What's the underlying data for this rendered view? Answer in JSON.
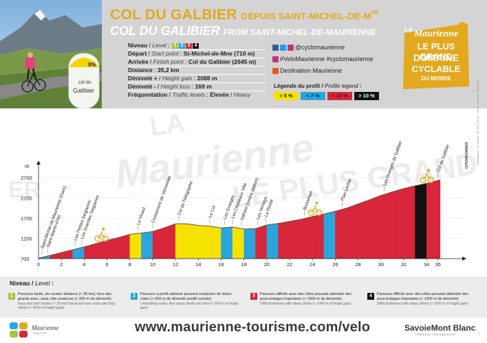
{
  "header": {
    "title_fr": "COL DU GALBIER",
    "subtitle_fr": "DEPUIS SAINT-MICHEL-DE-M",
    "subtitle_fr_sup": "NE",
    "title_en": "COL DU GALIBIER",
    "subtitle_en": "FROM SAINT-MICHEL-DE-MAURIENNE",
    "photo_sign_percent": "9%",
    "photo_sign_line1": "col du",
    "photo_sign_line2": "Galibier"
  },
  "info": {
    "niveau_label": "Niveau",
    "niveau_label_en": "Level",
    "niveau_levels": [
      "1",
      "2",
      "3",
      "4"
    ],
    "depart_label": "Départ",
    "depart_label_en": "Start point",
    "depart_value": "St-Michel-de-Mne (710 m)",
    "arrivee_label": "Arrivée",
    "arrivee_label_en": "Finish point",
    "arrivee_value": "Col du Galibier (2645 m)",
    "distance_label": "Distance",
    "distance_value": "35,2 km",
    "denivele_plus_label": "Dénivelé +",
    "denivele_plus_label_en": "Height gain",
    "denivele_plus_value": "2088 m",
    "denivele_moins_label": "Dénivelé -",
    "denivele_moins_label_en": "Height loss",
    "denivele_moins_value": "169 m",
    "frequentation_label": "Fréquentation",
    "frequentation_label_en": "Traffic levels",
    "frequentation_value": "Élevée",
    "frequentation_value_en": "Heavy"
  },
  "social": {
    "handle": "@cyclomaurienne",
    "hashtags": "#VeloMaurienne #cyclomaurienne",
    "destination": "Destination Maurienne"
  },
  "legend": {
    "title": "Légende du profil",
    "title_en": "Profile legend",
    "items": [
      {
        "label": "< 5 %",
        "color": "#f6e200",
        "text": "#222"
      },
      {
        "label": "< 7 %",
        "color": "#2aa6dd",
        "text": "#222"
      },
      {
        "label": "< 10 %",
        "color": "#d8263a",
        "text": "#222"
      },
      {
        "label": "> 10 %",
        "color": "#111111",
        "text": "#fff"
      }
    ]
  },
  "logo": {
    "la": "LA",
    "maurienne": "Maurienne",
    "line1": "LE PLUS GRAND",
    "line2": "DOMAINE",
    "line3": "CYCLABLE",
    "line4": "DU MONDE"
  },
  "chart_data": {
    "type": "area",
    "ylabel": "m",
    "yticks": [
      700,
      1200,
      1700,
      2200,
      2700
    ],
    "ylim": [
      700,
      2700
    ],
    "xticks": [
      0,
      2,
      4,
      6,
      8,
      10,
      12,
      14,
      16,
      18,
      20,
      22,
      24,
      26,
      28,
      30,
      32,
      34,
      35
    ],
    "xlim": [
      0,
      35.2
    ],
    "profile_x": [
      0,
      1,
      2,
      3,
      4,
      5,
      6,
      7,
      8,
      9,
      10,
      11,
      12,
      13,
      14,
      15,
      16,
      17,
      18,
      19,
      20,
      21,
      22,
      23,
      24,
      25,
      26,
      27,
      28,
      29,
      30,
      31,
      32,
      33,
      34,
      35.2
    ],
    "profile_y": [
      710,
      780,
      850,
      920,
      990,
      1070,
      1150,
      1220,
      1300,
      1330,
      1370,
      1460,
      1560,
      1560,
      1520,
      1500,
      1460,
      1480,
      1430,
      1440,
      1530,
      1570,
      1620,
      1670,
      1740,
      1800,
      1870,
      1950,
      2050,
      2150,
      2260,
      2350,
      2430,
      2500,
      2560,
      2645
    ],
    "segment_colors": [
      "#2aa6dd",
      "#d8263a",
      "#d8263a",
      "#2aa6dd",
      "#d8263a",
      "#d8263a",
      "#d8263a",
      "#d8263a",
      "#f6e200",
      "#2aa6dd",
      "#d8263a",
      "#d8263a",
      "#f6e200",
      "#f6e200",
      "#f6e200",
      "#f6e200",
      "#2aa6dd",
      "#f6e200",
      "#2aa6dd",
      "#d8263a",
      "#2aa6dd",
      "#d8263a",
      "#d8263a",
      "#d8263a",
      "#d8263a",
      "#2aa6dd",
      "#d8263a",
      "#d8263a",
      "#d8263a",
      "#d8263a",
      "#d8263a",
      "#d8263a",
      "#d8263a",
      "#111111",
      "#d8263a"
    ],
    "annotations": [
      {
        "label": "Saint-Michel-de-Maurienne (Gare)",
        "x": 0.3
      },
      {
        "label": "Saint-Martin-d'Arc",
        "x": 0.8
      },
      {
        "label": "Les Petites Seigneres",
        "x": 3.2
      },
      {
        "label": "Les Grandes Seigneres",
        "x": 3.8
      },
      {
        "label": "La Visard",
        "x": 8.7
      },
      {
        "label": "Croisement de Valmeinier",
        "x": 10.0
      },
      {
        "label": "Col du Télégraphe",
        "x": 12.3
      },
      {
        "label": "Le Col",
        "x": 15.0
      },
      {
        "label": "Les Granges",
        "x": 16.3
      },
      {
        "label": "Les Choseaux Ville",
        "x": 17.0
      },
      {
        "label": "Valloire (centre station)",
        "x": 17.8
      },
      {
        "label": "Les Verneys",
        "x": 19.2
      },
      {
        "label": "La Rivine",
        "x": 19.9
      },
      {
        "label": "Bonnenuit",
        "x": 23.3
      },
      {
        "label": "Plan Lachat",
        "x": 26.6
      },
      {
        "label": "Les Granges du Galibier",
        "x": 30.3
      },
      {
        "label": "Col du Galibier",
        "x": 35.0
      }
    ],
    "cyclists_x": [
      5.5,
      24.2,
      34.0
    ]
  },
  "levels": {
    "title": "Niveau",
    "title_en": "Level",
    "items": [
      {
        "num": "1",
        "color": "#a8c43c",
        "fr": "Parcours facile, de courtes distance (< 30 km), hors des grands axes, sans côte soutenue (< 300 m de dénivelé).",
        "en": "Easy and short routes (< 30 km) that avoid main roads and long climbs (< 300m of height gain)"
      },
      {
        "num": "2",
        "color": "#2aa6dd",
        "fr": "Parcours à profil vallonné pouvant comporter de fortes côtes (< 600 m de dénivelé positif cumulé).",
        "en": "Undulating routes. Any steep climbs are short (< 600 m of height gain)"
      },
      {
        "num": "3",
        "color": "#d8263a",
        "fr": "Parcours difficile avec des côtes pouvant atteindre des pourcentages importants (< 1000 m de dénivelé).",
        "en": "Difficult itinerary with steep climbs (< 1000 m of height gain)"
      },
      {
        "num": "4",
        "color": "#111111",
        "fr": "Parcours difficile avec des côtes pouvant atteindre des pourcentages importants (> 1000 m de dénivelé).",
        "en": "Difficult itinerary with steep climbs (> 1000 m of height gain)"
      }
    ]
  },
  "bottom": {
    "url": "www.maurienne-tourisme.com/velo",
    "maurienne_logo": "Maurienne",
    "maurienne_sub": "SAVOIE",
    "smb": "SavoieMont Blanc",
    "smb_sub": "réalisons l'exceptionnel",
    "openrunner": "OPENRUNNER",
    "credit": "Réalisation : Cl. Savoie - 06 69 21 69 54 - Photo : A. Gros - Données :"
  }
}
